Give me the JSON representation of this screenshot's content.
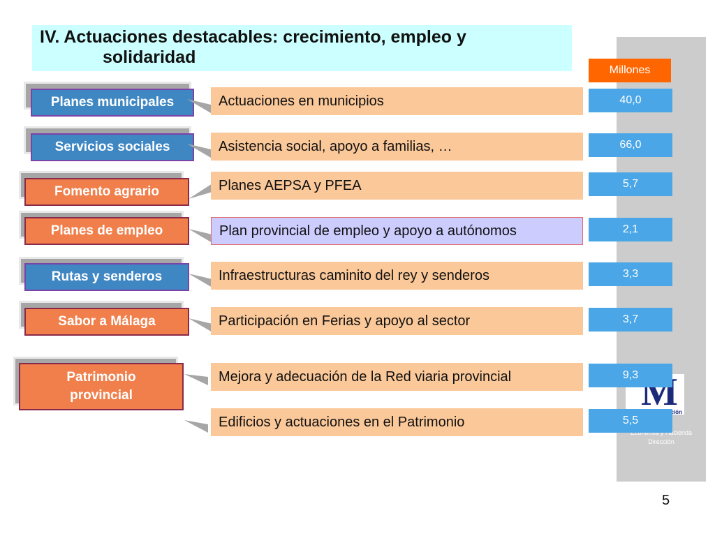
{
  "title": {
    "line1": "IV. Actuaciones destacables: crecimiento, empleo y",
    "line2": "solidaridad"
  },
  "unit_label": "Millones",
  "rows": [
    {
      "category": "Planes municipales",
      "description": "Actuaciones en municipios",
      "value": "40,0"
    },
    {
      "category": "Servicios sociales",
      "description": "Asistencia social, apoyo a familias, …",
      "value": "66,0"
    },
    {
      "category": "Fomento agrario",
      "description": "Planes AEPSA y PFEA",
      "value": "5,7"
    },
    {
      "category": "Planes de empleo",
      "description": "Plan provincial de empleo y apoyo a autónomos",
      "value": "2,1"
    },
    {
      "category": "Rutas y senderos",
      "description": "Infraestructuras caminito del rey y senderos",
      "value": "3,3"
    },
    {
      "category": "Sabor a Málaga",
      "description": "Participación en Ferias y apoyo al sector",
      "value": "3,7"
    },
    {
      "category": "Patrimonio provincial",
      "description": "Mejora y adecuación de la Red viaria provincial",
      "value": "9,3"
    },
    {
      "category": "",
      "description": "Edificios y actuaciones en el Patrimonio",
      "value": "5,5"
    }
  ],
  "side_panel": {
    "logo_letter": "M",
    "logo_fragment": "ación",
    "line1": "Economía y Hacienda",
    "line2": "Dirección"
  },
  "page_number": "5",
  "colors": {
    "title_bg": "#ccffff",
    "description_bg": "#fbc899",
    "description_highlight_bg": "#ccccff",
    "value_bg": "#4aa6e6",
    "unit_bg": "#ff6600",
    "category_blue": "#3f87c3",
    "category_orange": "#f07f4b"
  }
}
